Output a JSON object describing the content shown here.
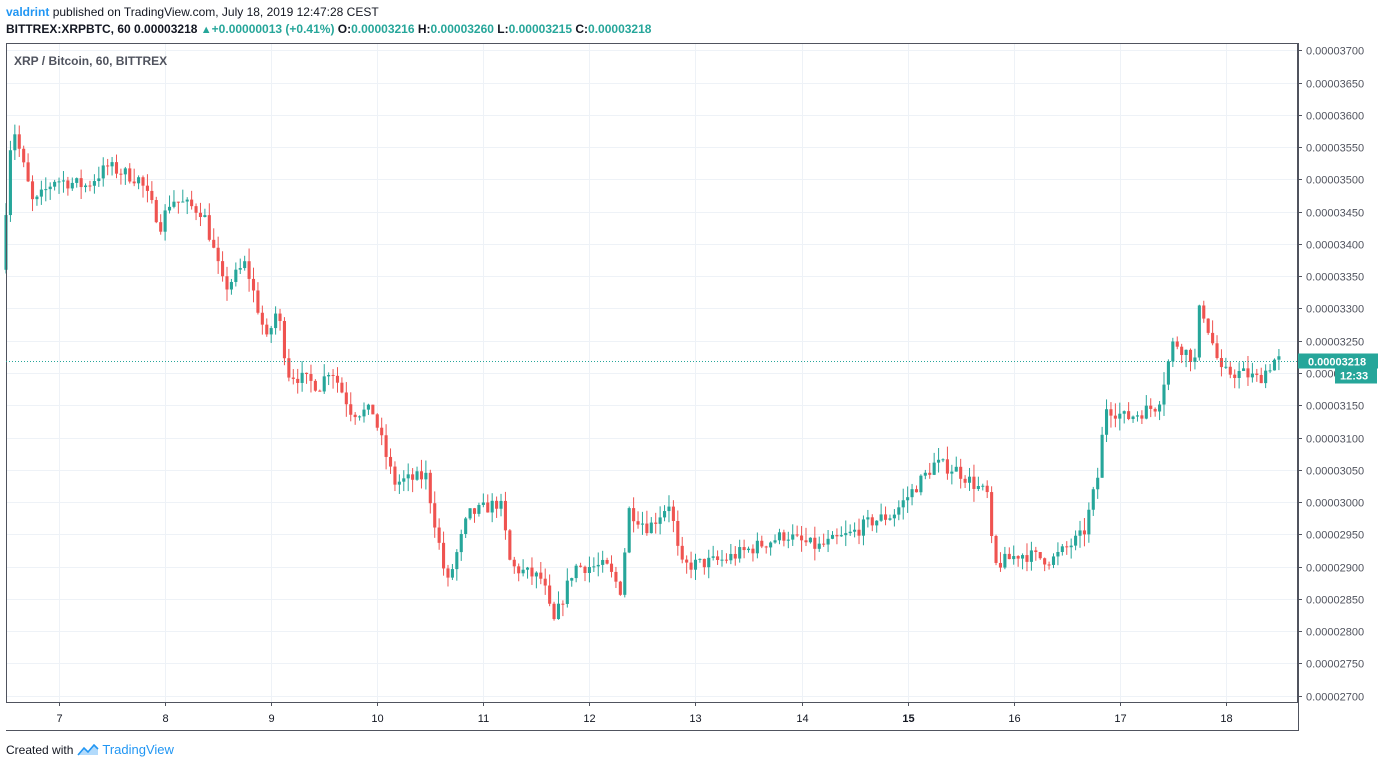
{
  "header": {
    "author": "valdrint",
    "published_text": "published on TradingView.com, July 18, 2019 12:47:28 CEST",
    "symbol": "BITTREX:XRPBTC, 60",
    "last": "0.00003218",
    "change": "+0.00000013 (+0.41%)",
    "open_label": "O:",
    "open": "0.00003216",
    "high_label": "H:",
    "high": "0.00003260",
    "low_label": "L:",
    "low": "0.00003215",
    "close_label": "C:",
    "close": "0.00003218"
  },
  "footer": {
    "created_with": "Created with",
    "brand": "TradingView"
  },
  "colors": {
    "up": "#26a69a",
    "down": "#ef5350",
    "grid": "#eef2f7",
    "axis_text": "#50535e",
    "brand": "#2196f3"
  },
  "chart_data": {
    "type": "candlestick",
    "title": "XRP / Bitcoin, 60, BITTREX",
    "x_labels": [
      "7",
      "8",
      "9",
      "10",
      "11",
      "12",
      "13",
      "14",
      "15",
      "16",
      "17",
      "18"
    ],
    "y_ticks": [
      "0.00002700",
      "0.00002750",
      "0.00002800",
      "0.00002850",
      "0.00002900",
      "0.00002950",
      "0.00003000",
      "0.00003050",
      "0.00003100",
      "0.00003150",
      "0.00003200",
      "0.00003250",
      "0.00003300",
      "0.00003350",
      "0.00003400",
      "0.00003450",
      "0.00003500",
      "0.00003550",
      "0.00003600",
      "0.00003650",
      "0.00003700"
    ],
    "ylim": [
      2.69e-05,
      3.71e-05
    ],
    "x_range_days": [
      6.5,
      18.68
    ],
    "last_price_label": "0.00003218",
    "countdown_label": "12:33",
    "grid": true,
    "anchors": [
      [
        6.5,
        3.36e-05
      ],
      [
        6.6,
        3.59e-05
      ],
      [
        6.8,
        3.46e-05
      ],
      [
        7.0,
        3.5e-05
      ],
      [
        7.3,
        3.49e-05
      ],
      [
        7.5,
        3.52e-05
      ],
      [
        7.8,
        3.5e-05
      ],
      [
        8.0,
        3.43e-05
      ],
      [
        8.1,
        3.47e-05
      ],
      [
        8.4,
        3.45e-05
      ],
      [
        8.6,
        3.33e-05
      ],
      [
        8.8,
        3.37e-05
      ],
      [
        9.0,
        3.25e-05
      ],
      [
        9.1,
        3.3e-05
      ],
      [
        9.2,
        3.2e-05
      ],
      [
        9.5,
        3.18e-05
      ],
      [
        9.6,
        3.21e-05
      ],
      [
        9.8,
        3.14e-05
      ],
      [
        10.0,
        3.14e-05
      ],
      [
        10.2,
        3.03e-05
      ],
      [
        10.5,
        3.04e-05
      ],
      [
        10.7,
        2.87e-05
      ],
      [
        10.9,
        2.98e-05
      ],
      [
        11.2,
        3e-05
      ],
      [
        11.3,
        2.9e-05
      ],
      [
        11.6,
        2.88e-05
      ],
      [
        11.7,
        2.81e-05
      ],
      [
        11.9,
        2.9e-05
      ],
      [
        12.2,
        2.9e-05
      ],
      [
        12.35,
        2.86e-05
      ],
      [
        12.4,
        2.99e-05
      ],
      [
        12.6,
        2.96e-05
      ],
      [
        12.8,
        3e-05
      ],
      [
        12.9,
        2.9e-05
      ],
      [
        13.3,
        2.91e-05
      ],
      [
        13.6,
        2.93e-05
      ],
      [
        13.9,
        2.95e-05
      ],
      [
        14.0,
        2.94e-05
      ],
      [
        14.2,
        2.93e-05
      ],
      [
        14.5,
        2.95e-05
      ],
      [
        14.7,
        2.97e-05
      ],
      [
        14.9,
        2.98e-05
      ],
      [
        15.15,
        3.03e-05
      ],
      [
        15.3,
        3.06e-05
      ],
      [
        15.5,
        3.05e-05
      ],
      [
        15.8,
        3.01e-05
      ],
      [
        15.85,
        2.9e-05
      ],
      [
        16.1,
        2.92e-05
      ],
      [
        16.4,
        2.91e-05
      ],
      [
        16.7,
        2.95e-05
      ],
      [
        16.85,
        3.05e-05
      ],
      [
        16.9,
        3.15e-05
      ],
      [
        17.1,
        3.13e-05
      ],
      [
        17.4,
        3.15e-05
      ],
      [
        17.55,
        3.25e-05
      ],
      [
        17.75,
        3.22e-05
      ],
      [
        17.8,
        3.31e-05
      ],
      [
        18.0,
        3.2e-05
      ],
      [
        18.2,
        3.2e-05
      ],
      [
        18.35,
        3.19e-05
      ],
      [
        18.5,
        3.22e-05
      ]
    ]
  }
}
